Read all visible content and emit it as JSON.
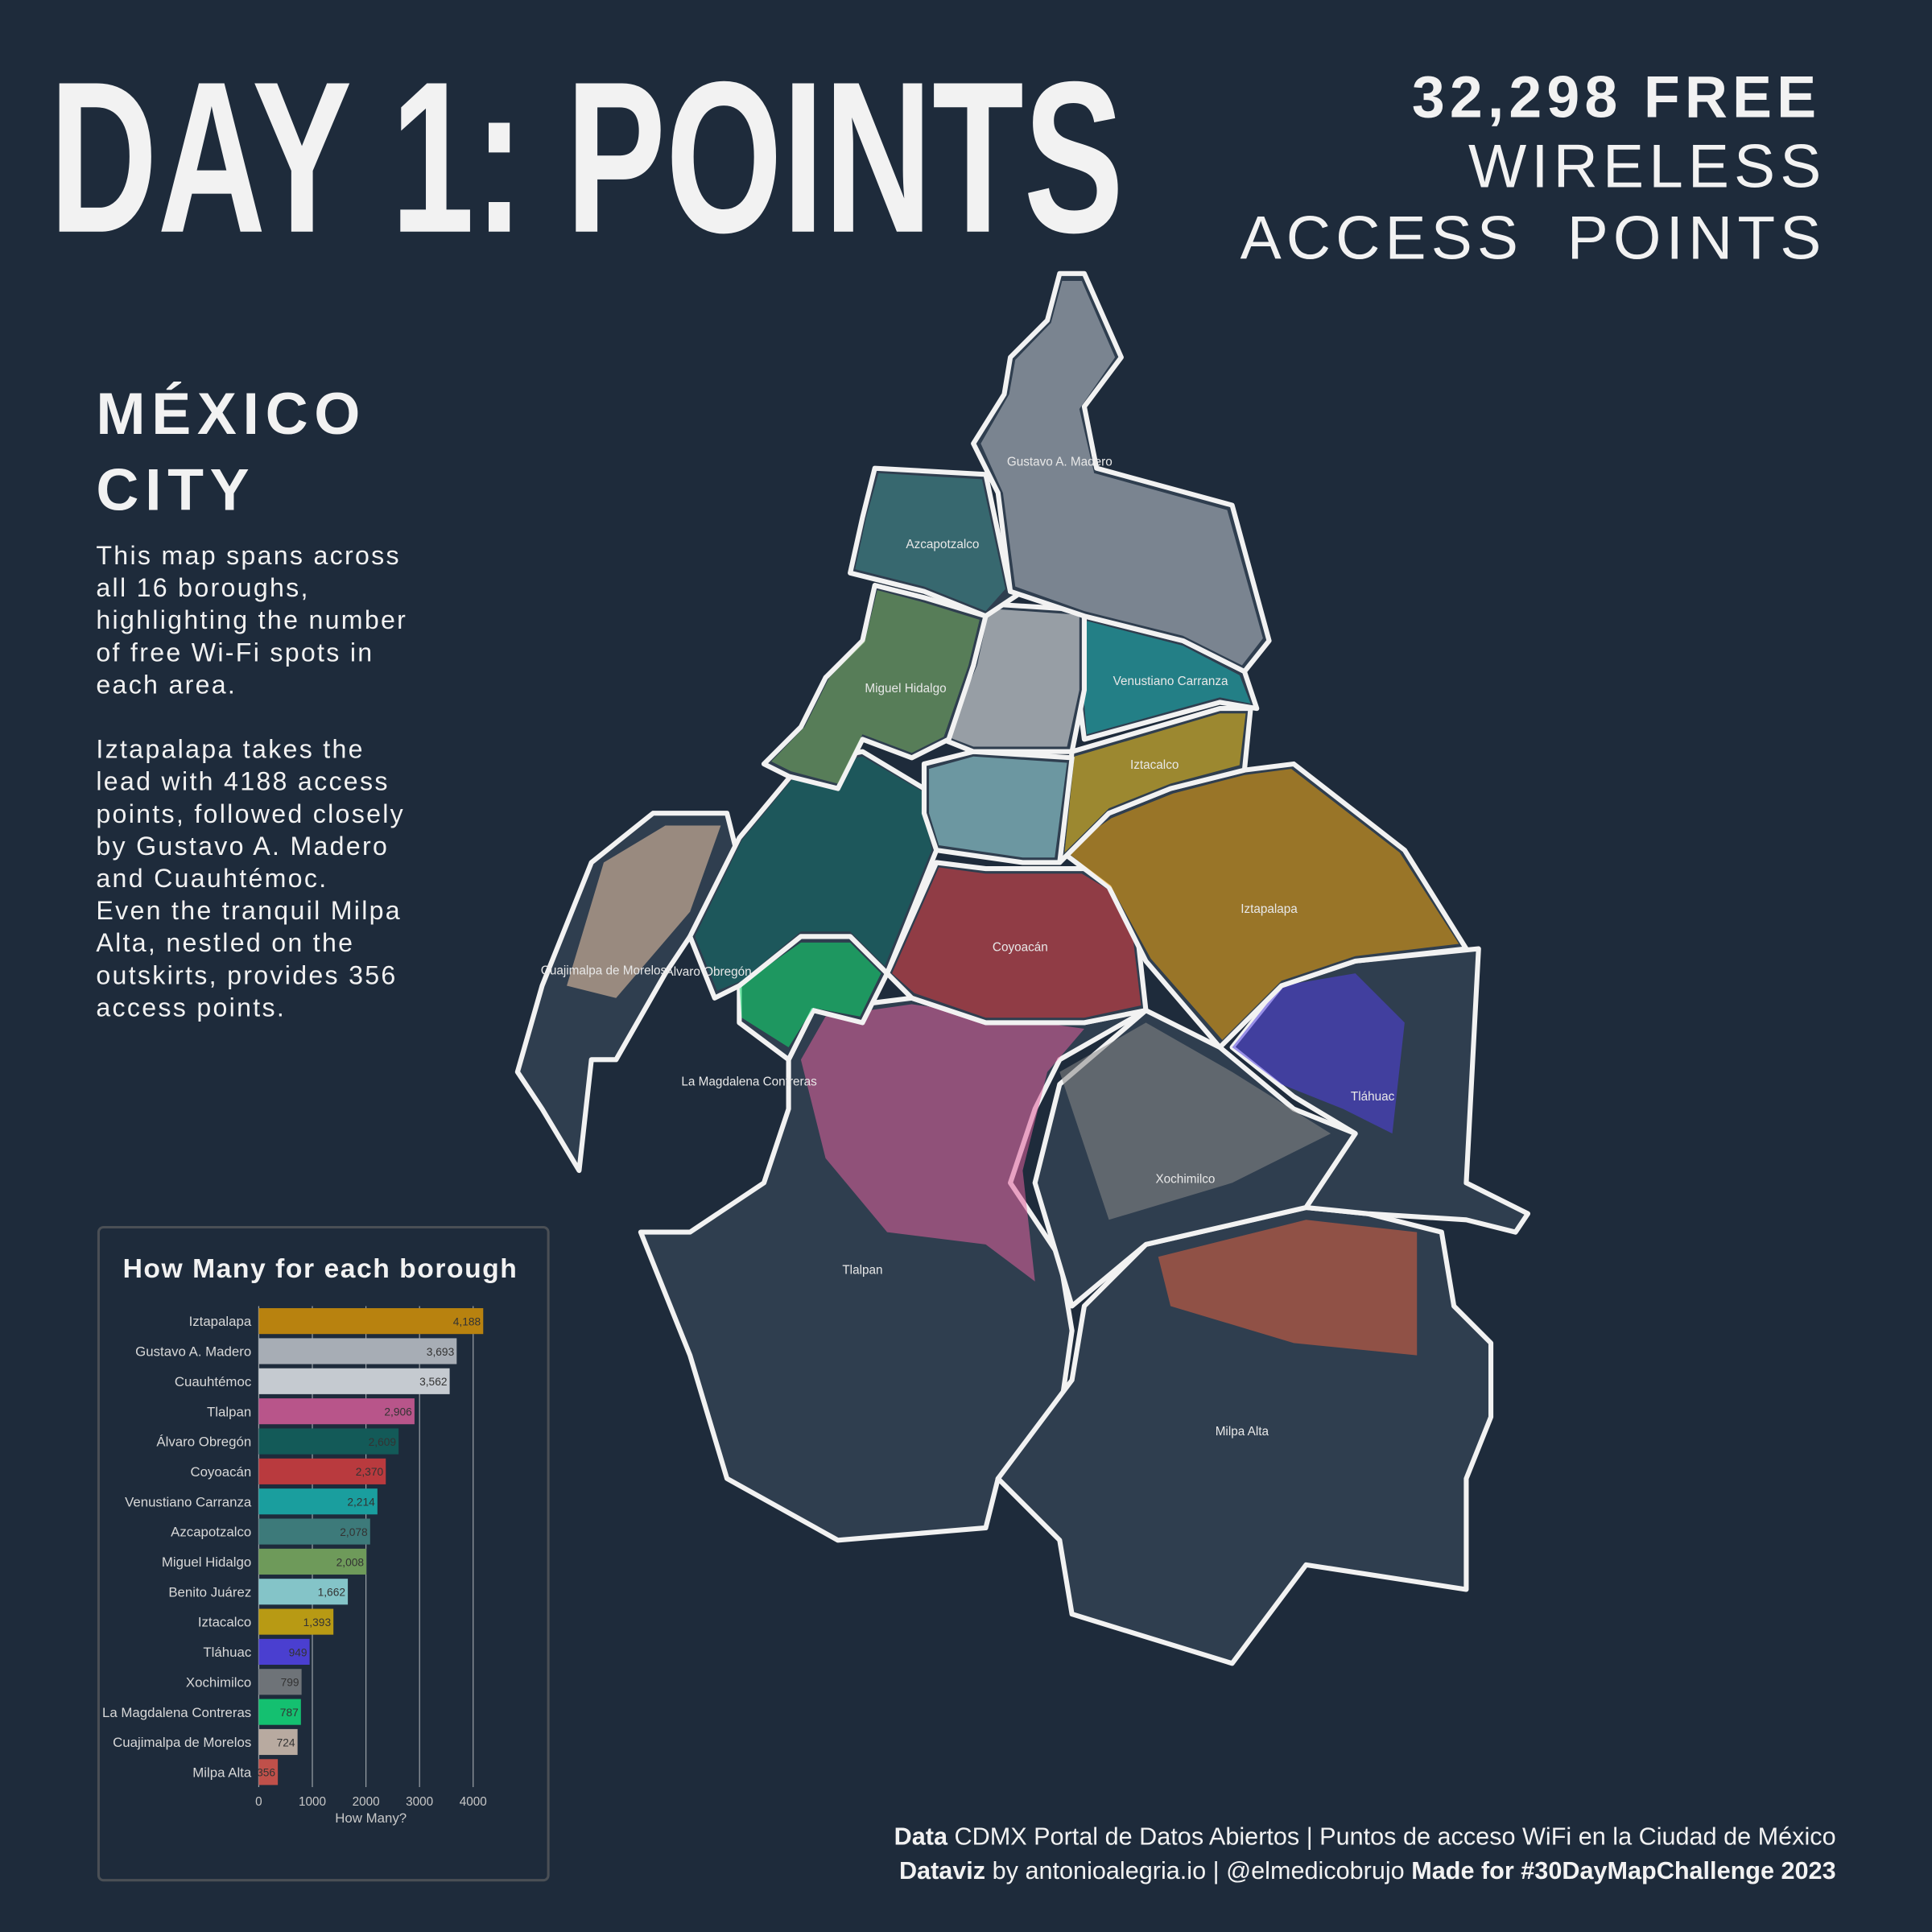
{
  "header": {
    "title": "DAY 1: POINTS",
    "subtitle_lines": [
      "32,298 FREE",
      "WIRELESS",
      "ACCESS  POINTS"
    ]
  },
  "side": {
    "heading_lines": [
      "MÉXICO",
      "CITY"
    ],
    "paragraphs": [
      [
        "This map spans across",
        "all 16 boroughs,",
        "highlighting the number",
        "of free Wi-Fi spots in",
        "each area."
      ],
      [
        "Iztapalapa takes the",
        "lead with 4188 access",
        "points, followed closely",
        "by Gustavo A. Madero",
        "and Cuauhtémoc.",
        "Even the tranquil Milpa",
        "Alta, nestled on the",
        "outskirts, provides 356",
        "access points."
      ]
    ]
  },
  "map": {
    "labels": [
      "Gustavo A. Madero",
      "Azcapotzalco",
      "Miguel Hidalgo",
      "Venustiano Carranza",
      "Iztacalco",
      "Iztapalapa",
      "Coyoacán",
      "Cuajimalpa de Morelos",
      "Álvaro Obregón",
      "La Magdalena Contreras",
      "Tláhuac",
      "Xochimilco",
      "Tlalpan",
      "Milpa Alta"
    ]
  },
  "chart_data": {
    "type": "barh",
    "title": "How Many for each borough",
    "x_label": "How Many?",
    "categories": [
      "Iztapalapa",
      "Gustavo A. Madero",
      "Cuauhtémoc",
      "Tlalpan",
      "Álvaro Obregón",
      "Coyoacán",
      "Venustiano Carranza",
      "Azcapotzalco",
      "Miguel Hidalgo",
      "Benito Juárez",
      "Iztacalco",
      "Tláhuac",
      "Xochimilco",
      "La Magdalena Contreras",
      "Cuajimalpa de Morelos",
      "Milpa Alta"
    ],
    "values": [
      4188,
      3693,
      3562,
      2906,
      2609,
      2370,
      2214,
      2078,
      2008,
      1662,
      1393,
      949,
      799,
      787,
      724,
      356
    ],
    "value_labels": [
      "4,188",
      "3,693",
      "3,562",
      "2,906",
      "2,609",
      "2,370",
      "2,214",
      "2,078",
      "2,008",
      "1,662",
      "1,393",
      "949",
      "799",
      "787",
      "724",
      "356"
    ],
    "colors": [
      "#b8820f",
      "#a7adb5",
      "#c5cad0",
      "#b8558a",
      "#135a58",
      "#b93a3e",
      "#1a9e9e",
      "#3d7a7a",
      "#6e9a5a",
      "#84c4c8",
      "#b89a14",
      "#4a3fd0",
      "#6e7378",
      "#14c070",
      "#b8aaa0",
      "#c0504a"
    ],
    "xlim": [
      0,
      4400
    ],
    "xticks": [
      0,
      1000,
      2000,
      3000,
      4000
    ],
    "grid": true
  },
  "footer": {
    "line1": {
      "bold": "Data",
      "text": "CDMX Portal de Datos Abiertos | Puntos de acceso WiFi en la Ciudad de México"
    },
    "line2": {
      "bold": "Dataviz",
      "text": "by antonioalegria.io | @elmedicobrujo",
      "bold2": "Made for #30DayMapChallenge 2023"
    }
  }
}
